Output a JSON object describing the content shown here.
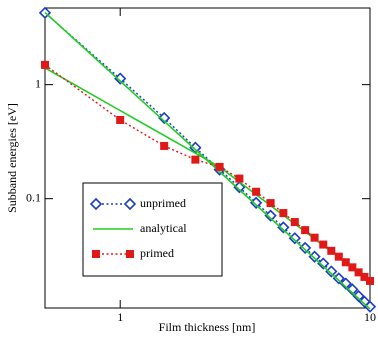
{
  "chart_data": {
    "type": "line",
    "x_label": "Film thickness [nm]",
    "y_label": "Subband energies [eV]",
    "x_log": true,
    "y_log": true,
    "xlim": [
      0.5,
      10
    ],
    "ylim": [
      0.011,
      4.7
    ],
    "xticks": [
      1,
      10
    ],
    "yticks": [
      0.1,
      1
    ],
    "x": [
      0.5,
      1,
      1.5,
      2,
      2.5,
      3,
      3.5,
      4,
      4.5,
      5,
      5.5,
      6,
      6.5,
      7,
      7.5,
      8,
      8.5,
      9,
      9.5,
      10
    ],
    "series": [
      {
        "name": "unprimed",
        "color": "#1a3cc8",
        "marker": "diamond",
        "line": "dotted",
        "values": [
          4.26,
          1.13,
          0.51,
          0.28,
          0.18,
          0.126,
          0.092,
          0.071,
          0.056,
          0.045,
          0.037,
          0.031,
          0.027,
          0.023,
          0.02,
          0.018,
          0.016,
          0.014,
          0.0125,
          0.0113
        ]
      },
      {
        "name": "analytical",
        "color": "#22cc22",
        "marker": "none",
        "line": "solid",
        "x": [
          0.5,
          10,
          null,
          0.5,
          2.5,
          10
        ],
        "values": [
          4.3,
          0.0108,
          null,
          1.4,
          0.19,
          0.019
        ]
      },
      {
        "name": "primed",
        "color": "#e01818",
        "marker": "square",
        "line": "dotted",
        "values": [
          1.49,
          0.49,
          0.29,
          0.22,
          0.19,
          0.15,
          0.115,
          0.0915,
          0.0748,
          0.0624,
          0.053,
          0.0455,
          0.0396,
          0.0349,
          0.031,
          0.0277,
          0.025,
          0.0226,
          0.0206,
          0.019
        ]
      }
    ]
  }
}
